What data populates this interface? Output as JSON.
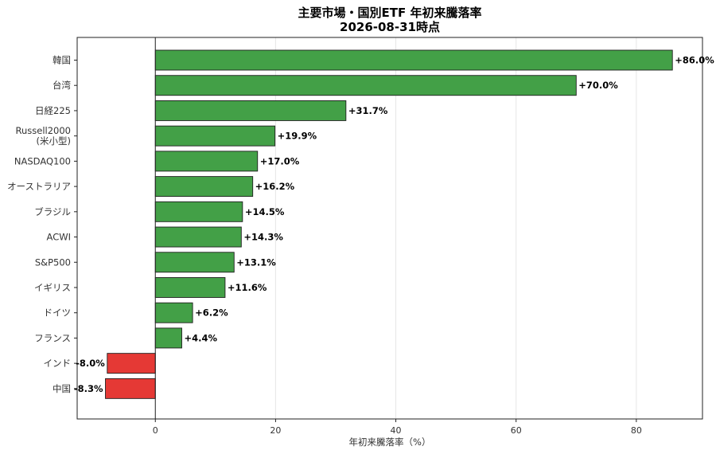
{
  "chart_data": {
    "type": "bar",
    "orientation": "horizontal",
    "title": "主要市場・国別ETF 年初来騰落率",
    "subtitle": "2026-08-31時点",
    "xlabel": "年初来騰落率（%）",
    "ylabel": "",
    "xlim": [
      -13,
      91
    ],
    "xticks": [
      0,
      20,
      40,
      60,
      80
    ],
    "grid": "vertical",
    "categories": [
      "韓国",
      "台湾",
      "日経225",
      "Russell2000\n(米小型)",
      "NASDAQ100",
      "オーストラリア",
      "ブラジル",
      "ACWI",
      "S&P500",
      "イギリス",
      "ドイツ",
      "フランス",
      "インド",
      "中国"
    ],
    "values": [
      86.0,
      70.0,
      31.7,
      19.9,
      17.0,
      16.2,
      14.5,
      14.3,
      13.1,
      11.6,
      6.2,
      4.4,
      -8.0,
      -8.3
    ],
    "data_labels": [
      "+86.0%",
      "+70.0%",
      "+31.7%",
      "+19.9%",
      "+17.0%",
      "+16.2%",
      "+14.5%",
      "+14.3%",
      "+13.1%",
      "+11.6%",
      "+6.2%",
      "+4.4%",
      "-8.0%",
      "-8.3%"
    ],
    "colors": {
      "positive": "#43a047",
      "negative": "#e53935",
      "edge": "#1f1f1f",
      "grid": "#e6e6e6",
      "axis": "#222222"
    }
  }
}
